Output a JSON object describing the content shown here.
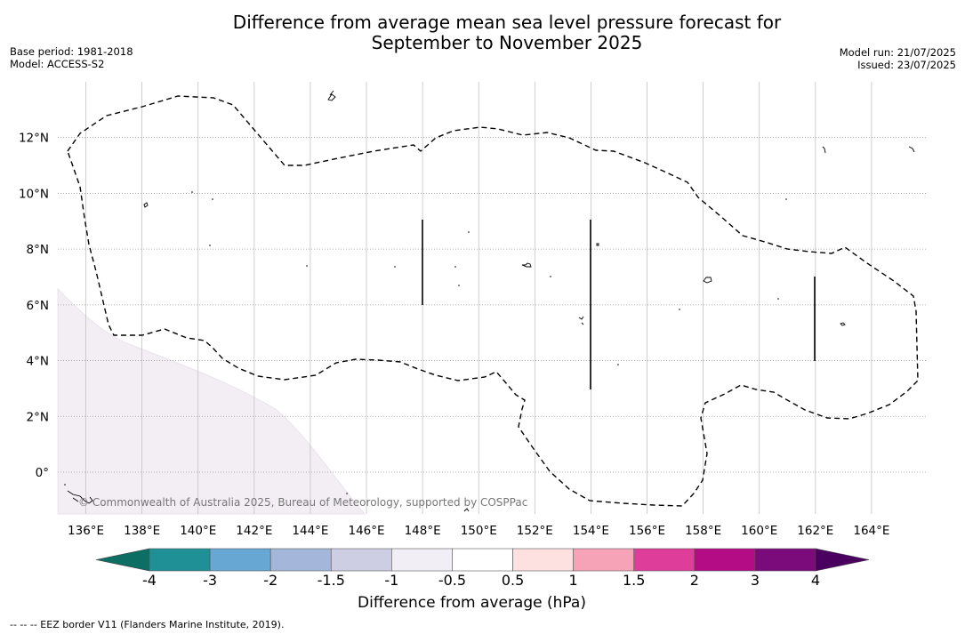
{
  "title_line1": "Difference from average mean sea level pressure forecast for",
  "title_line2": "September to November 2025",
  "base_period": "Base period: 1981-2018",
  "model": "Model: ACCESS-S2",
  "model_run": "Model run: 21/07/2025",
  "issued": "Issued: 23/07/2025",
  "copyright": "© Commonwealth of Australia 2025, Bureau of Meteorology, supported by COSPPac",
  "footnote": "--  --  -- EEZ border V11 (Flanders Marine Institute, 2019).",
  "map": {
    "lon_labels": [
      "136°E",
      "138°E",
      "140°E",
      "142°E",
      "144°E",
      "146°E",
      "148°E",
      "150°E",
      "152°E",
      "154°E",
      "156°E",
      "158°E",
      "160°E",
      "162°E",
      "164°E"
    ],
    "lat_labels": [
      "12°N",
      "10°N",
      "8°N",
      "6°N",
      "4°N",
      "2°N",
      "0°"
    ],
    "extent": {
      "lon_min": 135.0,
      "lon_max": 166.0,
      "lat_min": -1.5,
      "lat_max": 14.0
    },
    "background_fill_color": "#ffffff",
    "shaded_region_color": "#f2eef4"
  },
  "colorbar": {
    "title": "Difference from average (hPa)",
    "tick_labels": [
      "-4",
      "-3",
      "-2",
      "-1.5",
      "-1",
      "-0.5",
      "0.5",
      "1",
      "1.5",
      "2",
      "3",
      "4"
    ],
    "under_color": "#0d6e63",
    "over_color": "#4a005f",
    "colors": [
      "#1f9196",
      "#66a7d3",
      "#a4b7da",
      "#cdcde4",
      "#f2eef6",
      "#ffffff",
      "#fde0e0",
      "#f6a2b7",
      "#de3d9a",
      "#b40c84",
      "#7b0a7b"
    ]
  }
}
